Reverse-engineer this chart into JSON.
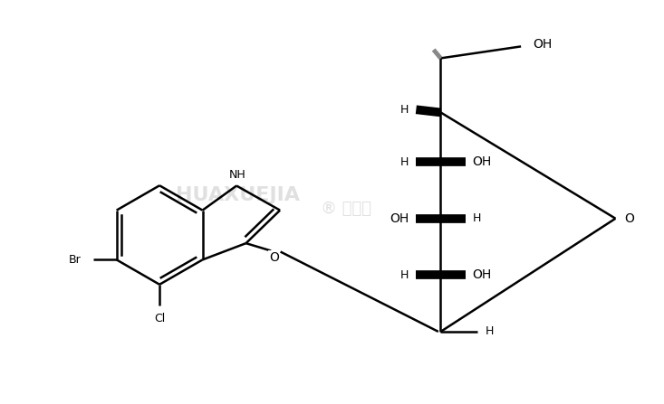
{
  "background_color": "#ffffff",
  "line_color": "#000000",
  "lw": 1.8,
  "bold_lw": 7.0,
  "figsize": [
    7.33,
    4.47
  ],
  "dpi": 100,
  "watermark1": "HUAXUEJIA",
  "watermark2": "® 华学加",
  "labels": {
    "NH": "NH",
    "Br": "Br",
    "Cl": "Cl",
    "O_link": "O",
    "O_ring": "O",
    "OH": "OH",
    "H": "H"
  }
}
